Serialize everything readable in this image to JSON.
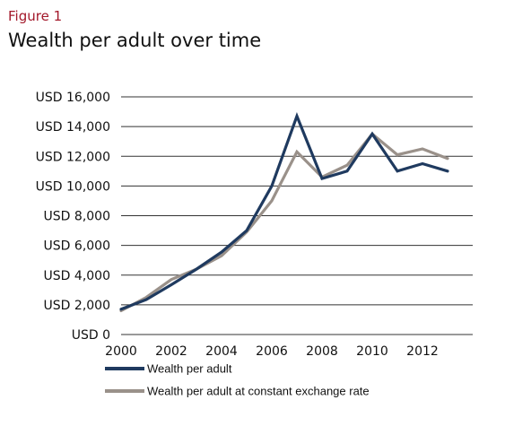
{
  "figure_label": "Figure 1",
  "title": "Wealth per adult over time",
  "chart_data": {
    "type": "line",
    "x": [
      2000,
      2001,
      2002,
      2003,
      2004,
      2005,
      2006,
      2007,
      2008,
      2009,
      2010,
      2011,
      2012,
      2013
    ],
    "series": [
      {
        "name": "Wealth per adult",
        "color": "#1f3a5f",
        "values": [
          1700,
          2350,
          3350,
          4400,
          5550,
          7000,
          10000,
          14700,
          10500,
          11000,
          13500,
          11000,
          11500,
          11000
        ]
      },
      {
        "name": "Wealth per adult at constant exchange rate",
        "color": "#9a918a",
        "values": [
          1600,
          2500,
          3700,
          4400,
          5300,
          6900,
          9000,
          12300,
          10600,
          11400,
          13500,
          12100,
          12500,
          11850
        ]
      }
    ],
    "y_ticks": [
      "USD 0",
      "USD 2,000",
      "USD 4,000",
      "USD 6,000",
      "USD 8,000",
      "USD 10,000",
      "USD 12,000",
      "USD 14,000",
      "USD 16,000"
    ],
    "x_ticks": [
      "2000",
      "2002",
      "2004",
      "2006",
      "2008",
      "2010",
      "2012"
    ],
    "ylim": [
      0,
      16000
    ],
    "xlim": [
      2000,
      2014
    ],
    "grid": true,
    "legend_position": "bottom-left"
  }
}
